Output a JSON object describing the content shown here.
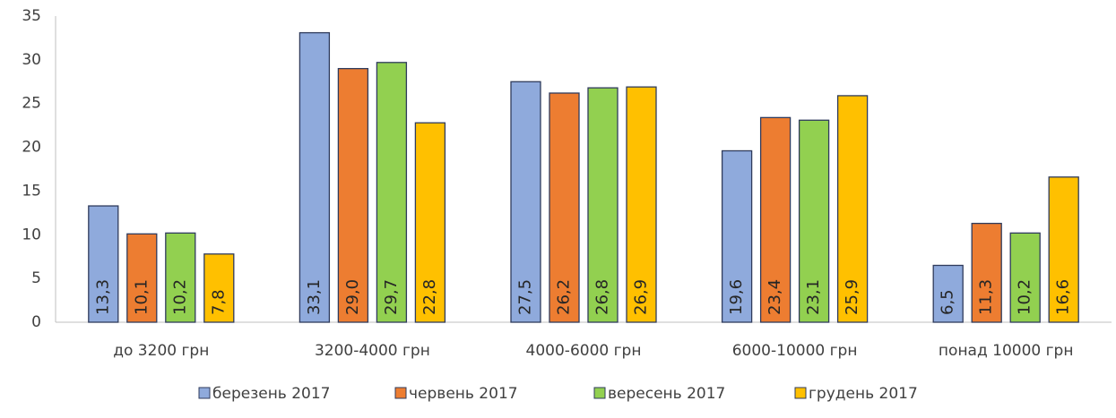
{
  "chart_data": {
    "type": "bar",
    "categories": [
      "до 3200 грн",
      "3200-4000 грн",
      "4000-6000 грн",
      "6000-10000 грн",
      "понад 10000 грн"
    ],
    "series": [
      {
        "name": "березень 2017",
        "color": "#8faadc",
        "values": [
          13.3,
          33.1,
          27.5,
          19.6,
          6.5
        ],
        "value_labels": [
          "13,3",
          "33,1",
          "27,5",
          "19,6",
          "6,5"
        ]
      },
      {
        "name": "червень 2017",
        "color": "#ed7d31",
        "values": [
          10.1,
          29.0,
          26.2,
          23.4,
          11.3
        ],
        "value_labels": [
          "10,1",
          "29,0",
          "26,2",
          "23,4",
          "11,3"
        ]
      },
      {
        "name": "вересень 2017",
        "color": "#92d050",
        "values": [
          10.2,
          29.7,
          26.8,
          23.1,
          10.2
        ],
        "value_labels": [
          "10,2",
          "29,7",
          "26,8",
          "23,1",
          "10,2"
        ]
      },
      {
        "name": "грудень 2017",
        "color": "#ffc000",
        "values": [
          7.8,
          22.8,
          26.9,
          25.9,
          16.6
        ],
        "value_labels": [
          "7,8",
          "22,8",
          "26,9",
          "25,9",
          "16,6"
        ]
      }
    ],
    "ylim": [
      0,
      35
    ],
    "yticks": [
      0,
      5,
      10,
      15,
      20,
      25,
      30,
      35
    ],
    "grid": false,
    "legend": "bottom"
  }
}
